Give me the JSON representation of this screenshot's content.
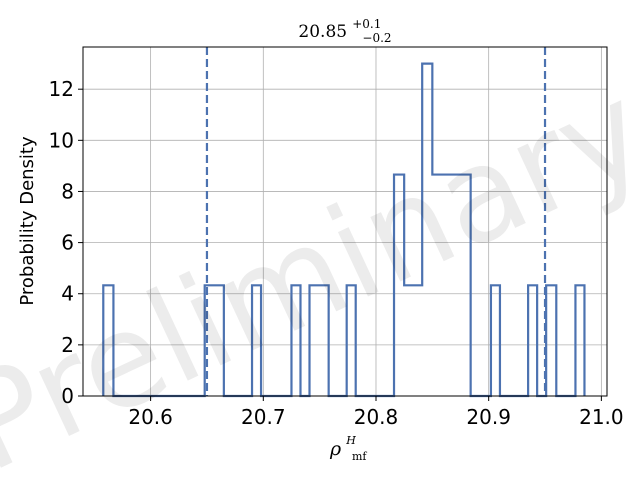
{
  "chart_data": {
    "type": "histogram-step",
    "title": {
      "base": "20.85",
      "sup": "+0.1",
      "sub": "−0.2"
    },
    "xlabel": {
      "base": "ρ",
      "sup": "H",
      "sub": "mf"
    },
    "ylabel": "Probability Density",
    "xlim": [
      20.54,
      21.005
    ],
    "ylim": [
      0,
      13.65
    ],
    "xticks": [
      20.6,
      20.7,
      20.8,
      20.9,
      21.0
    ],
    "xtick_labels": [
      "20.6",
      "20.7",
      "20.8",
      "20.9",
      "21.0"
    ],
    "yticks": [
      0,
      2,
      4,
      6,
      8,
      10,
      12
    ],
    "ytick_labels": [
      "0",
      "2",
      "4",
      "6",
      "8",
      "10",
      "12"
    ],
    "grid": true,
    "color": "#4c72b0",
    "bins": [
      {
        "x0": 20.558,
        "x1": 20.567,
        "y": 4.33
      },
      {
        "x0": 20.567,
        "x1": 20.648,
        "y": 0
      },
      {
        "x0": 20.648,
        "x1": 20.665,
        "y": 4.33
      },
      {
        "x0": 20.665,
        "x1": 20.69,
        "y": 0
      },
      {
        "x0": 20.69,
        "x1": 20.698,
        "y": 4.33
      },
      {
        "x0": 20.698,
        "x1": 20.725,
        "y": 0
      },
      {
        "x0": 20.725,
        "x1": 20.733,
        "y": 4.33
      },
      {
        "x0": 20.733,
        "x1": 20.741,
        "y": 0
      },
      {
        "x0": 20.741,
        "x1": 20.758,
        "y": 4.33
      },
      {
        "x0": 20.758,
        "x1": 20.774,
        "y": 0
      },
      {
        "x0": 20.774,
        "x1": 20.782,
        "y": 4.33
      },
      {
        "x0": 20.782,
        "x1": 20.816,
        "y": 0
      },
      {
        "x0": 20.816,
        "x1": 20.825,
        "y": 8.66
      },
      {
        "x0": 20.825,
        "x1": 20.841,
        "y": 4.33
      },
      {
        "x0": 20.841,
        "x1": 20.85,
        "y": 13.0
      },
      {
        "x0": 20.85,
        "x1": 20.884,
        "y": 8.66
      },
      {
        "x0": 20.884,
        "x1": 20.902,
        "y": 0
      },
      {
        "x0": 20.902,
        "x1": 20.91,
        "y": 4.33
      },
      {
        "x0": 20.91,
        "x1": 20.935,
        "y": 0
      },
      {
        "x0": 20.935,
        "x1": 20.943,
        "y": 4.33
      },
      {
        "x0": 20.943,
        "x1": 20.951,
        "y": 0
      },
      {
        "x0": 20.951,
        "x1": 20.96,
        "y": 4.33
      },
      {
        "x0": 20.96,
        "x1": 20.977,
        "y": 0
      },
      {
        "x0": 20.977,
        "x1": 20.985,
        "y": 4.33
      }
    ],
    "vlines": [
      20.65,
      20.95
    ],
    "watermark": "Preliminary"
  }
}
